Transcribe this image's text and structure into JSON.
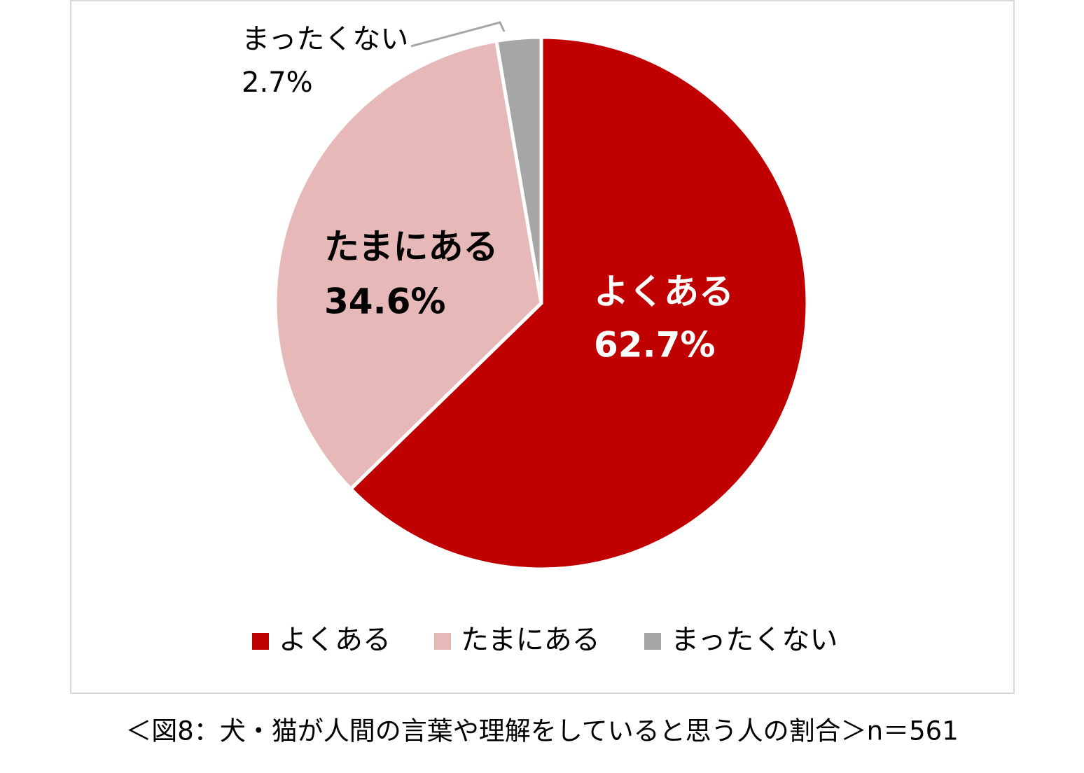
{
  "chart_data": {
    "type": "pie",
    "title": "＜図8：犬・猫が人間の言葉や理解をしていると思う人の割合＞n＝561",
    "categories": [
      "よくある",
      "たまにある",
      "まったくない"
    ],
    "values": [
      62.7,
      34.6,
      2.7
    ],
    "value_labels": [
      "62.7%",
      "34.6%",
      "2.7%"
    ],
    "colors": [
      "#c00000",
      "#e6b9b8",
      "#a6a6a6"
    ],
    "legend": "bottom"
  }
}
